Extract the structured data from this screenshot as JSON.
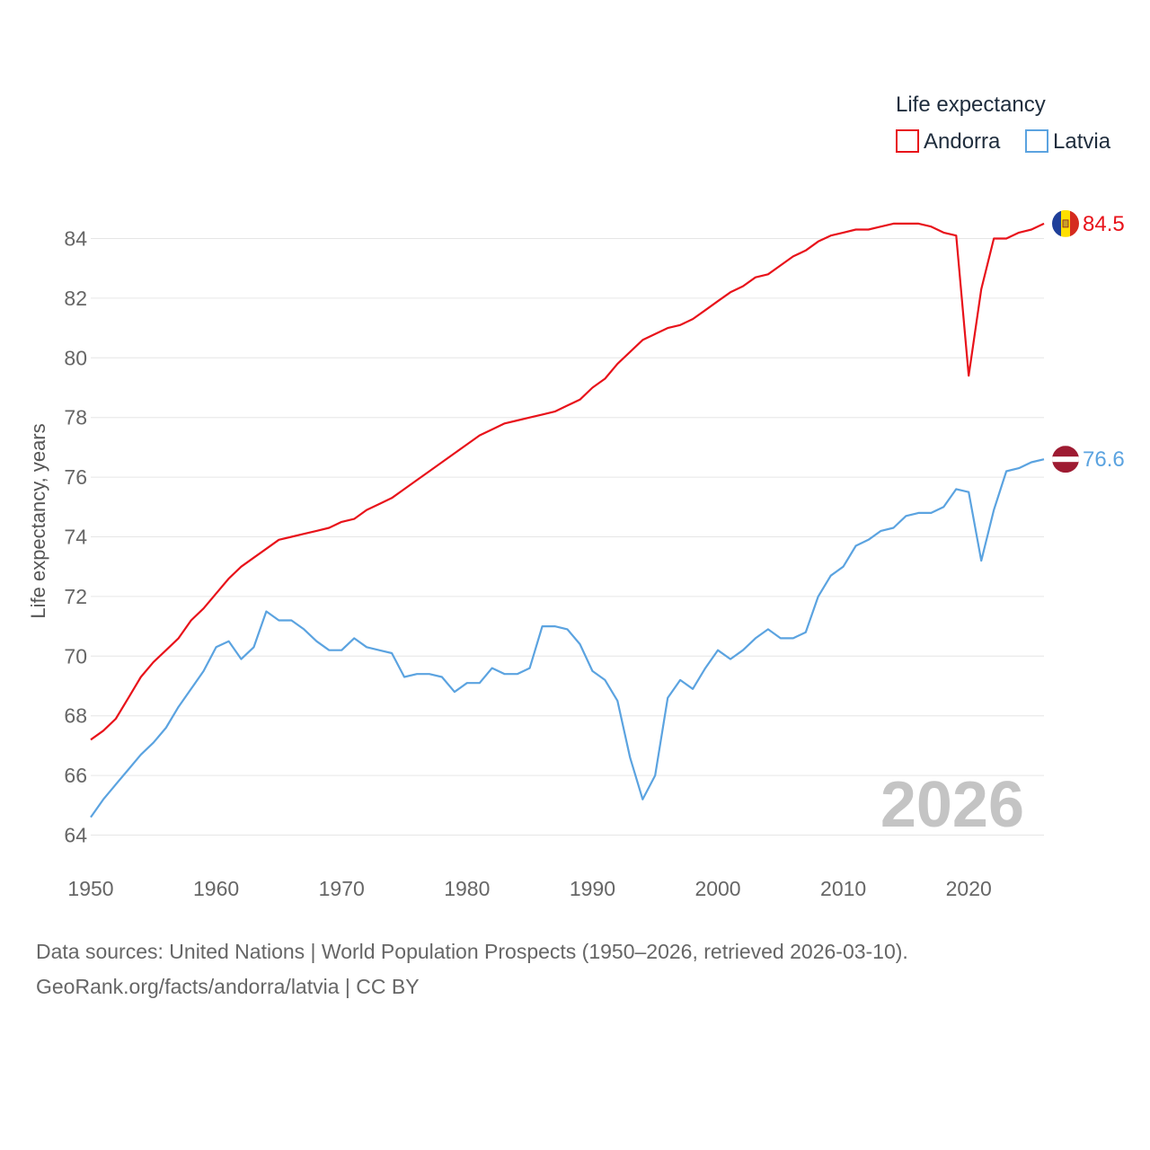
{
  "chart_data": {
    "type": "line",
    "title": "",
    "legend_title": "Life expectancy",
    "legend_position": "top-right",
    "xlabel": "",
    "ylabel": "Life expectancy, years",
    "xlim": [
      1950,
      2026
    ],
    "ylim": [
      63.5,
      85.5
    ],
    "x_ticks": [
      "1950",
      "1960",
      "1970",
      "1980",
      "1990",
      "2000",
      "2010",
      "2020"
    ],
    "y_ticks": [
      "64",
      "66",
      "68",
      "70",
      "72",
      "74",
      "76",
      "78",
      "80",
      "82",
      "84"
    ],
    "current_year_label": "2026",
    "x": [
      1950,
      1951,
      1952,
      1953,
      1954,
      1955,
      1956,
      1957,
      1958,
      1959,
      1960,
      1961,
      1962,
      1963,
      1964,
      1965,
      1966,
      1967,
      1968,
      1969,
      1970,
      1971,
      1972,
      1973,
      1974,
      1975,
      1976,
      1977,
      1978,
      1979,
      1980,
      1981,
      1982,
      1983,
      1984,
      1985,
      1986,
      1987,
      1988,
      1989,
      1990,
      1991,
      1992,
      1993,
      1994,
      1995,
      1996,
      1997,
      1998,
      1999,
      2000,
      2001,
      2002,
      2003,
      2004,
      2005,
      2006,
      2007,
      2008,
      2009,
      2010,
      2011,
      2012,
      2013,
      2014,
      2015,
      2016,
      2017,
      2018,
      2019,
      2020,
      2021,
      2022,
      2023,
      2024,
      2025,
      2026
    ],
    "series": [
      {
        "name": "Andorra",
        "color": "#e8121a",
        "end_label": "84.5",
        "flag_icon": "andorra-flag-icon",
        "values": [
          67.2,
          67.5,
          67.9,
          68.6,
          69.3,
          69.8,
          70.2,
          70.6,
          71.2,
          71.6,
          72.1,
          72.6,
          73.0,
          73.3,
          73.6,
          73.9,
          74.0,
          74.1,
          74.2,
          74.3,
          74.5,
          74.6,
          74.9,
          75.1,
          75.3,
          75.6,
          75.9,
          76.2,
          76.5,
          76.8,
          77.1,
          77.4,
          77.6,
          77.8,
          77.9,
          78.0,
          78.1,
          78.2,
          78.4,
          78.6,
          79.0,
          79.3,
          79.8,
          80.2,
          80.6,
          80.8,
          81.0,
          81.1,
          81.3,
          81.6,
          81.9,
          82.2,
          82.4,
          82.7,
          82.8,
          83.1,
          83.4,
          83.6,
          83.9,
          84.1,
          84.2,
          84.3,
          84.3,
          84.4,
          84.5,
          84.5,
          84.5,
          84.4,
          84.2,
          84.1,
          79.4,
          82.3,
          84.0,
          84.0,
          84.2,
          84.3,
          84.5
        ]
      },
      {
        "name": "Latvia",
        "color": "#5ba3e0",
        "end_label": "76.6",
        "flag_icon": "latvia-flag-icon",
        "values": [
          64.6,
          65.2,
          65.7,
          66.2,
          66.7,
          67.1,
          67.6,
          68.3,
          68.9,
          69.5,
          70.3,
          70.5,
          69.9,
          70.3,
          71.5,
          71.2,
          71.2,
          70.9,
          70.5,
          70.2,
          70.2,
          70.6,
          70.3,
          70.2,
          70.1,
          69.3,
          69.4,
          69.4,
          69.3,
          68.8,
          69.1,
          69.1,
          69.6,
          69.4,
          69.4,
          69.6,
          71.0,
          71.0,
          70.9,
          70.4,
          69.5,
          69.2,
          68.5,
          66.6,
          65.2,
          66.0,
          68.6,
          69.2,
          68.9,
          69.6,
          70.2,
          69.9,
          70.2,
          70.6,
          70.9,
          70.6,
          70.6,
          70.8,
          72.0,
          72.7,
          73.0,
          73.7,
          73.9,
          74.2,
          74.3,
          74.7,
          74.8,
          74.8,
          75.0,
          75.6,
          75.5,
          73.2,
          74.9,
          76.2,
          76.3,
          76.5,
          76.6
        ]
      }
    ]
  },
  "footer": {
    "sources": "Data sources: United Nations | World Population Prospects (1950–2026, retrieved 2026-03-10).",
    "credit": "GeoRank.org/facts/andorra/latvia | CC BY"
  }
}
